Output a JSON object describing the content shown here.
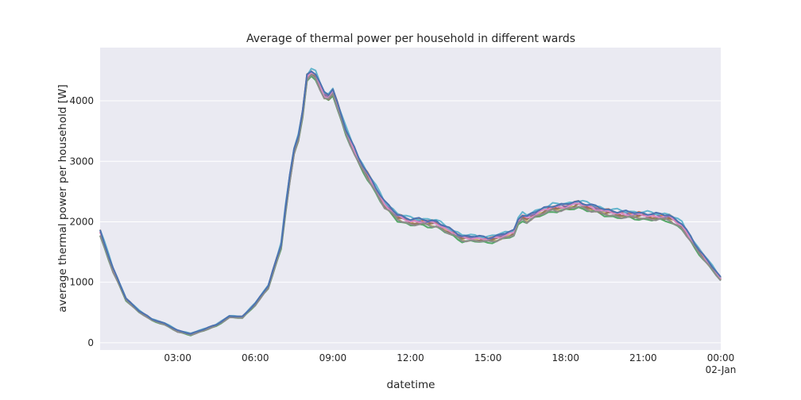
{
  "chart_data": {
    "type": "line",
    "title": "Average of thermal power per household in different wards",
    "xlabel": "datetime",
    "ylabel": "average thermal power per household [W]",
    "x_tick_labels": [
      "03:00",
      "06:00",
      "09:00",
      "12:00",
      "15:00",
      "18:00",
      "21:00",
      "00:00"
    ],
    "x_tick_sublabel": "02-Jan",
    "x_tick_hours": [
      3,
      6,
      9,
      12,
      15,
      18,
      21,
      24
    ],
    "y_tick_labels": [
      "0",
      "1000",
      "2000",
      "3000",
      "4000"
    ],
    "y_tick_values": [
      0,
      1000,
      2000,
      3000,
      4000
    ],
    "xlim": [
      0,
      24
    ],
    "ylim": [
      -120,
      4880
    ],
    "grid": true,
    "background": "#eaeaf2",
    "base_profile": {
      "hours": [
        0,
        0.5,
        1,
        1.5,
        2,
        2.5,
        3,
        3.5,
        4,
        4.5,
        5,
        5.5,
        6,
        6.5,
        7,
        7.25,
        7.5,
        7.75,
        8,
        8.25,
        8.5,
        8.75,
        9,
        9.5,
        10,
        10.5,
        11,
        11.5,
        12,
        12.5,
        13,
        13.5,
        14,
        14.5,
        15,
        15.5,
        16,
        16.25,
        16.5,
        17,
        17.5,
        18,
        18.5,
        19,
        19.5,
        20,
        20.5,
        21,
        21.5,
        22,
        22.5,
        23,
        23.5,
        24
      ],
      "values": [
        1820,
        1200,
        720,
        520,
        380,
        310,
        190,
        140,
        210,
        290,
        430,
        420,
        640,
        920,
        1600,
        2500,
        3150,
        3500,
        4380,
        4500,
        4250,
        4000,
        4150,
        3500,
        3000,
        2650,
        2280,
        2080,
        2000,
        1990,
        1970,
        1840,
        1730,
        1720,
        1700,
        1750,
        1810,
        2100,
        2050,
        2150,
        2230,
        2240,
        2290,
        2230,
        2160,
        2130,
        2110,
        2100,
        2080,
        2070,
        1930,
        1600,
        1330,
        1050
      ]
    },
    "series": [
      {
        "color": "#c44e52",
        "offset": 0
      },
      {
        "color": "#dd8452",
        "offset": 35
      },
      {
        "color": "#ccb974",
        "offset": -30
      },
      {
        "color": "#55a868",
        "offset": -55
      },
      {
        "color": "#8172b3",
        "offset": 20
      },
      {
        "color": "#64b5cd",
        "offset": 60
      },
      {
        "color": "#937860",
        "offset": -15
      },
      {
        "color": "#da8bc3",
        "offset": 10
      },
      {
        "color": "#8c8c8c",
        "offset": -40
      },
      {
        "color": "#4c72b0",
        "offset": 45
      }
    ]
  }
}
